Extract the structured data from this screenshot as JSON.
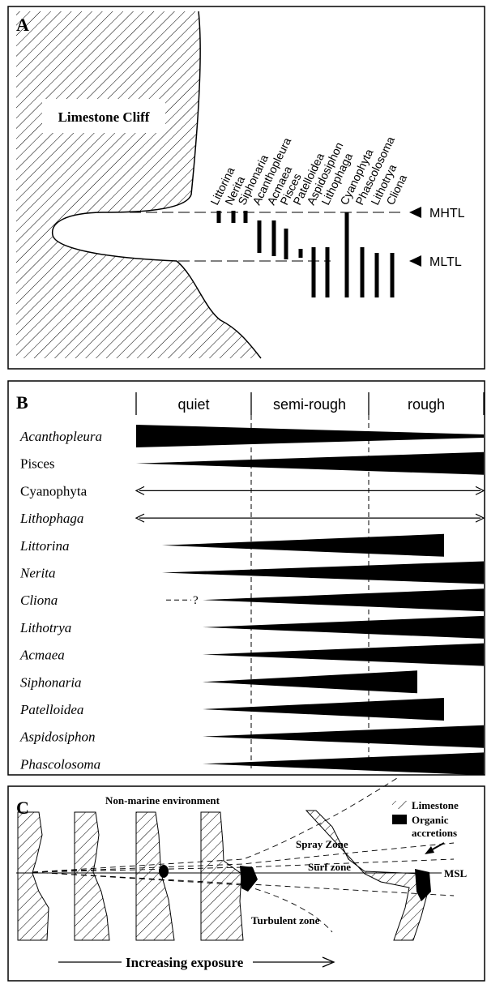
{
  "panel_a": {
    "label": "A",
    "cliff_label": "Limestone Cliff",
    "species": [
      "Littorina",
      "Nerita",
      "Siphonaria",
      "Acanthopleura",
      "Acmaea",
      "Pisces",
      "Patelloidea",
      "Aspidosiphon",
      "Lithophaga",
      "Cyanophyta",
      "Phascolosoma",
      "Lithotrya",
      "Cliona"
    ],
    "levels": [
      "MHTL",
      "MLTL"
    ]
  },
  "panel_b": {
    "label": "B",
    "zones": [
      "quiet",
      "semi-rough",
      "rough"
    ],
    "uncertain": "?",
    "species": [
      {
        "name": "Acanthopleura",
        "italic": true
      },
      {
        "name": "Pisces",
        "italic": false
      },
      {
        "name": "Cyanophyta",
        "italic": false
      },
      {
        "name": "Lithophaga",
        "italic": true
      },
      {
        "name": "Littorina",
        "italic": true
      },
      {
        "name": "Nerita",
        "italic": true
      },
      {
        "name": "Cliona",
        "italic": true
      },
      {
        "name": "Lithotrya",
        "italic": true
      },
      {
        "name": "Acmaea",
        "italic": true
      },
      {
        "name": "Siphonaria",
        "italic": true
      },
      {
        "name": "Patelloidea",
        "italic": true
      },
      {
        "name": "Aspidosiphon",
        "italic": true
      },
      {
        "name": "Phascolosoma",
        "italic": true
      }
    ]
  },
  "panel_c": {
    "label": "C",
    "top_label": "Non-marine environment",
    "legend": [
      "Limestone",
      "Organic",
      "accretions"
    ],
    "zones": [
      "Spray Zone",
      "Surf zone",
      "Turbulent zone"
    ],
    "msl": "MSL",
    "exposure": "Increasing exposure"
  }
}
